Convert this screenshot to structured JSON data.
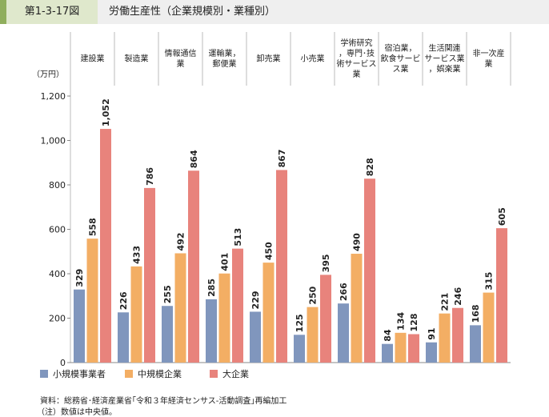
{
  "header": {
    "figure_number": "第1-3-17図",
    "title": "労働生産性（企業規模別・業種別）"
  },
  "chart_data": {
    "type": "bar",
    "title": "労働生産性（企業規模別・業種別）",
    "ylabel": "（万円）",
    "ylim": [
      0,
      1200
    ],
    "yticks": [
      0,
      200,
      400,
      600,
      800,
      1000,
      1200
    ],
    "ytick_labels": [
      "0",
      "200",
      "400",
      "600",
      "800",
      "1,000",
      "1,200"
    ],
    "categories": [
      [
        "建設業"
      ],
      [
        "製造業"
      ],
      [
        "情報通信",
        "業"
      ],
      [
        "運輸業，",
        "郵便業"
      ],
      [
        "卸売業"
      ],
      [
        "小売業"
      ],
      [
        "学術研究",
        "，専門･技",
        "術サービス",
        "業"
      ],
      [
        "宿泊業，",
        "飲食サービ",
        "ス業"
      ],
      [
        "生活関連",
        "サービス業",
        "，娯楽業"
      ],
      [
        "非一次産",
        "業"
      ]
    ],
    "series": [
      {
        "name": "小規模事業者",
        "color": "#8096bd",
        "values": [
          329,
          226,
          255,
          285,
          229,
          125,
          266,
          84,
          91,
          168
        ],
        "labels": [
          "329",
          "226",
          "255",
          "285",
          "229",
          "125",
          "266",
          "84",
          "91",
          "168"
        ]
      },
      {
        "name": "中規模企業",
        "color": "#f3ae64",
        "values": [
          558,
          433,
          492,
          401,
          450,
          250,
          490,
          134,
          221,
          315
        ],
        "labels": [
          "558",
          "433",
          "492",
          "401",
          "450",
          "250",
          "490",
          "134",
          "221",
          "315"
        ]
      },
      {
        "name": "大企業",
        "color": "#e8837c",
        "values": [
          1052,
          786,
          864,
          513,
          867,
          395,
          828,
          128,
          246,
          605
        ],
        "labels": [
          "1,052",
          "786",
          "864",
          "513",
          "867",
          "395",
          "828",
          "128",
          "246",
          "605"
        ]
      }
    ],
    "legend": "bottom-left",
    "grid": false
  },
  "footer": {
    "source": "資料：総務省･経済産業省｢令和３年経済センサス-活動調査｣再編加工",
    "note": "（注）数値は中央値。"
  }
}
